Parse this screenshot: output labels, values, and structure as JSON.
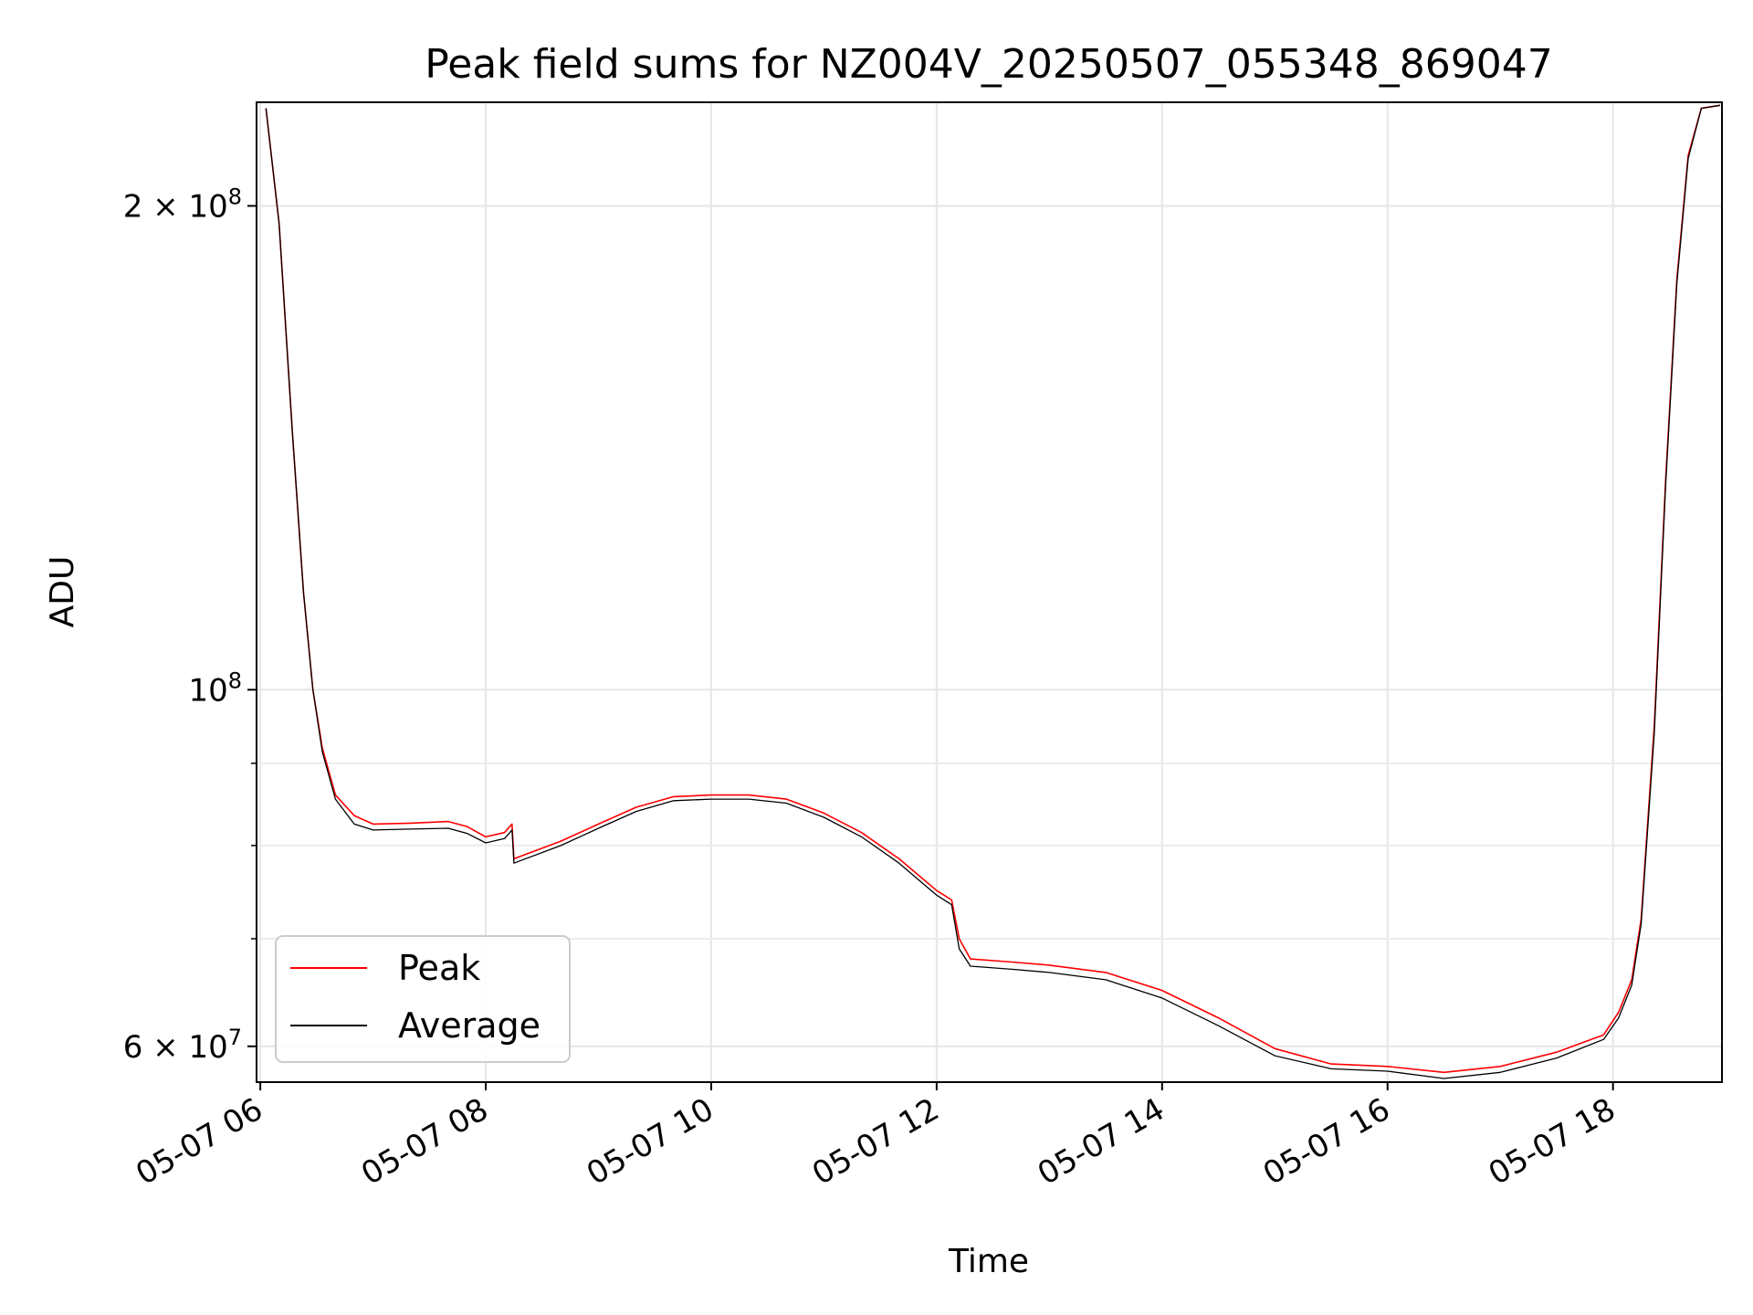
{
  "chart_data": {
    "type": "line",
    "title": "Peak field sums for NZ004V_20250507_055348_869047",
    "xlabel": "Time",
    "ylabel": "ADU",
    "y_scale": "log",
    "xlim": [
      "05-07 05:58",
      "05-07 18:58"
    ],
    "ylim": [
      57000000,
      232000000
    ],
    "grid": true,
    "legend_position": "lower-left",
    "x_ticks": [
      {
        "t": "05-07 06:00",
        "label": "05-07 06"
      },
      {
        "t": "05-07 08:00",
        "label": "05-07 08"
      },
      {
        "t": "05-07 10:00",
        "label": "05-07 10"
      },
      {
        "t": "05-07 12:00",
        "label": "05-07 12"
      },
      {
        "t": "05-07 14:00",
        "label": "05-07 14"
      },
      {
        "t": "05-07 16:00",
        "label": "05-07 16"
      },
      {
        "t": "05-07 18:00",
        "label": "05-07 18"
      }
    ],
    "y_ticks": [
      {
        "value": 60000000,
        "base": "6 × 10",
        "exp": "7"
      },
      {
        "value": 100000000,
        "base": "10",
        "exp": "8"
      },
      {
        "value": 200000000,
        "base": "2 × 10",
        "exp": "8"
      }
    ],
    "y_minor_ticks": [
      70000000,
      80000000,
      90000000
    ],
    "series": [
      {
        "name": "Peak",
        "color": "#ff0000",
        "points": [
          [
            "05-07 06:03",
            230000000
          ],
          [
            "05-07 06:10",
            195000000
          ],
          [
            "05-07 06:17",
            145000000
          ],
          [
            "05-07 06:23",
            115000000
          ],
          [
            "05-07 06:28",
            100000000
          ],
          [
            "05-07 06:33",
            92000000
          ],
          [
            "05-07 06:40",
            86000000
          ],
          [
            "05-07 06:50",
            83500000
          ],
          [
            "05-07 07:00",
            82500000
          ],
          [
            "05-07 07:20",
            82600000
          ],
          [
            "05-07 07:40",
            82800000
          ],
          [
            "05-07 07:50",
            82200000
          ],
          [
            "05-07 08:00",
            81000000
          ],
          [
            "05-07 08:10",
            81500000
          ],
          [
            "05-07 08:14",
            82500000
          ],
          [
            "05-07 08:15",
            78500000
          ],
          [
            "05-07 08:40",
            80500000
          ],
          [
            "05-07 09:00",
            82500000
          ],
          [
            "05-07 09:20",
            84500000
          ],
          [
            "05-07 09:40",
            85800000
          ],
          [
            "05-07 10:00",
            86000000
          ],
          [
            "05-07 10:20",
            86000000
          ],
          [
            "05-07 10:40",
            85500000
          ],
          [
            "05-07 11:00",
            83800000
          ],
          [
            "05-07 11:20",
            81500000
          ],
          [
            "05-07 11:40",
            78500000
          ],
          [
            "05-07 12:00",
            75000000
          ],
          [
            "05-07 12:08",
            74000000
          ],
          [
            "05-07 12:12",
            70000000
          ],
          [
            "05-07 12:18",
            68000000
          ],
          [
            "05-07 12:40",
            67700000
          ],
          [
            "05-07 13:00",
            67400000
          ],
          [
            "05-07 13:30",
            66700000
          ],
          [
            "05-07 14:00",
            65000000
          ],
          [
            "05-07 14:30",
            62500000
          ],
          [
            "05-07 15:00",
            59800000
          ],
          [
            "05-07 15:30",
            58500000
          ],
          [
            "05-07 16:00",
            58300000
          ],
          [
            "05-07 16:30",
            57800000
          ],
          [
            "05-07 17:00",
            58300000
          ],
          [
            "05-07 17:30",
            59500000
          ],
          [
            "05-07 17:55",
            61000000
          ],
          [
            "05-07 18:03",
            63000000
          ],
          [
            "05-07 18:10",
            66000000
          ],
          [
            "05-07 18:15",
            72000000
          ],
          [
            "05-07 18:22",
            95000000
          ],
          [
            "05-07 18:28",
            135000000
          ],
          [
            "05-07 18:34",
            180000000
          ],
          [
            "05-07 18:40",
            215000000
          ],
          [
            "05-07 18:47",
            230000000
          ],
          [
            "05-07 18:57",
            231000000
          ]
        ]
      },
      {
        "name": "Average",
        "color": "#000000",
        "points": [
          [
            "05-07 06:03",
            230000000
          ],
          [
            "05-07 06:10",
            195000000
          ],
          [
            "05-07 06:17",
            145000000
          ],
          [
            "05-07 06:23",
            115000000
          ],
          [
            "05-07 06:28",
            100000000
          ],
          [
            "05-07 06:33",
            91500000
          ],
          [
            "05-07 06:40",
            85500000
          ],
          [
            "05-07 06:50",
            82500000
          ],
          [
            "05-07 07:00",
            81800000
          ],
          [
            "05-07 07:20",
            81900000
          ],
          [
            "05-07 07:40",
            82000000
          ],
          [
            "05-07 07:50",
            81400000
          ],
          [
            "05-07 08:00",
            80300000
          ],
          [
            "05-07 08:10",
            80800000
          ],
          [
            "05-07 08:14",
            81800000
          ],
          [
            "05-07 08:15",
            78000000
          ],
          [
            "05-07 08:40",
            80000000
          ],
          [
            "05-07 09:00",
            82000000
          ],
          [
            "05-07 09:20",
            84000000
          ],
          [
            "05-07 09:40",
            85300000
          ],
          [
            "05-07 10:00",
            85500000
          ],
          [
            "05-07 10:20",
            85500000
          ],
          [
            "05-07 10:40",
            85000000
          ],
          [
            "05-07 11:00",
            83300000
          ],
          [
            "05-07 11:20",
            81000000
          ],
          [
            "05-07 11:40",
            78000000
          ],
          [
            "05-07 12:00",
            74500000
          ],
          [
            "05-07 12:08",
            73500000
          ],
          [
            "05-07 12:12",
            69000000
          ],
          [
            "05-07 12:18",
            67300000
          ],
          [
            "05-07 12:40",
            67000000
          ],
          [
            "05-07 13:00",
            66700000
          ],
          [
            "05-07 13:30",
            66000000
          ],
          [
            "05-07 14:00",
            64300000
          ],
          [
            "05-07 14:30",
            61800000
          ],
          [
            "05-07 15:00",
            59200000
          ],
          [
            "05-07 15:30",
            58100000
          ],
          [
            "05-07 16:00",
            57900000
          ],
          [
            "05-07 16:30",
            57300000
          ],
          [
            "05-07 17:00",
            57800000
          ],
          [
            "05-07 17:30",
            59000000
          ],
          [
            "05-07 17:55",
            60600000
          ],
          [
            "05-07 18:03",
            62500000
          ],
          [
            "05-07 18:10",
            65500000
          ],
          [
            "05-07 18:15",
            71500000
          ],
          [
            "05-07 18:22",
            94000000
          ],
          [
            "05-07 18:28",
            134000000
          ],
          [
            "05-07 18:34",
            179000000
          ],
          [
            "05-07 18:40",
            214000000
          ],
          [
            "05-07 18:47",
            230000000
          ],
          [
            "05-07 18:57",
            231000000
          ]
        ]
      }
    ]
  }
}
